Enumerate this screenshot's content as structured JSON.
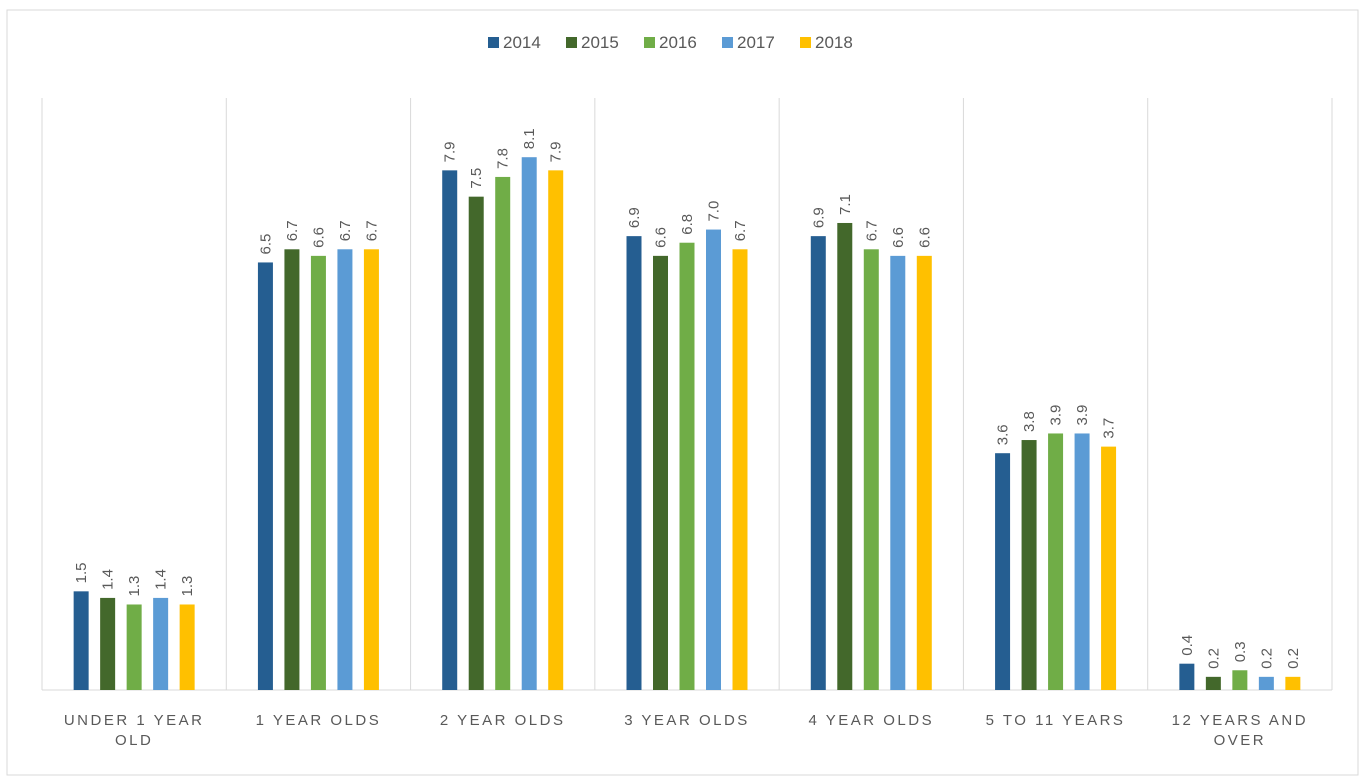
{
  "chart_data": {
    "type": "bar",
    "categories": [
      "UNDER 1 YEAR OLD",
      "1 YEAR OLDS",
      "2 YEAR OLDS",
      "3 YEAR OLDS",
      "4 YEAR OLDS",
      "5 TO 11 YEARS",
      "12 YEARS AND OVER"
    ],
    "series": [
      {
        "name": "2014",
        "color": "#255e91",
        "values": [
          1.5,
          6.5,
          7.9,
          6.9,
          6.9,
          3.6,
          0.4
        ],
        "value_labels": [
          "1.5",
          "6.5",
          "7.9",
          "6.9",
          "6.9",
          "3.6",
          "0.4"
        ]
      },
      {
        "name": "2015",
        "color": "#43682b",
        "values": [
          1.4,
          6.7,
          7.5,
          6.6,
          7.1,
          3.8,
          0.2
        ],
        "value_labels": [
          "1.4",
          "6.7",
          "7.5",
          "6.6",
          "7.1",
          "3.8",
          "0.2"
        ]
      },
      {
        "name": "2016",
        "color": "#70ad47",
        "values": [
          1.3,
          6.6,
          7.8,
          6.8,
          6.7,
          3.9,
          0.3
        ],
        "value_labels": [
          "1.3",
          "6.6",
          "7.8",
          "6.8",
          "6.7",
          "3.9",
          "0.3"
        ]
      },
      {
        "name": "2017",
        "color": "#5b9bd5",
        "values": [
          1.4,
          6.7,
          8.1,
          7.0,
          6.6,
          3.9,
          0.2
        ],
        "value_labels": [
          "1.4",
          "6.7",
          "8.1",
          "7.0",
          "6.6",
          "3.9",
          "0.2"
        ]
      },
      {
        "name": "2018",
        "color": "#ffc000",
        "values": [
          1.3,
          6.7,
          7.9,
          6.7,
          6.6,
          3.7,
          0.2
        ],
        "value_labels": [
          "1.3",
          "6.7",
          "7.9",
          "6.7",
          "6.6",
          "3.7",
          "0.2"
        ]
      }
    ],
    "ylim": [
      0,
      9
    ],
    "legend": "top"
  }
}
